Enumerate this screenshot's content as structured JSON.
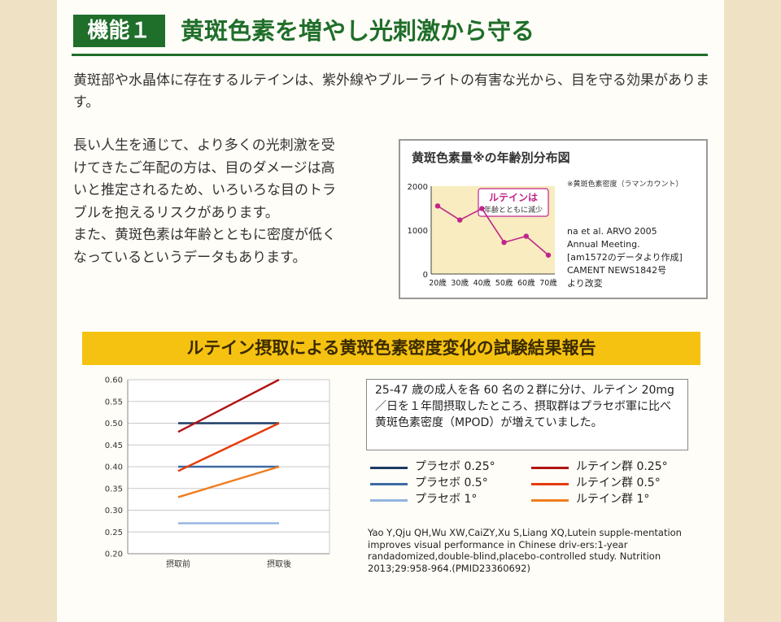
{
  "heading": {
    "tag": "機能１",
    "title": "黄斑色素を増やし光刺激から守る"
  },
  "intro": "黄斑部や水晶体に存在するルテインは、紫外線やブルーライトの有害な光から、目を守る効果があります。",
  "paragraph2": [
    "長い人生を通じて、より多くの光刺激を受",
    "けてきたご年配の方は、目のダメージは高",
    "いと推定されるため、いろいろな目のトラ",
    "ブルを抱えるリスクがあります。",
    "また、黄斑色素は年齢とともに密度が低く",
    "なっているというデータもあります。"
  ],
  "figure": {
    "title": "黄斑色素量※の年齢別分布図",
    "note": "※黄斑色素密度（ラマンカウント）",
    "callout": [
      "ルテインは",
      "年齢とともに減少"
    ],
    "source": [
      "na et al. ARVO 2005",
      "Annual Meeting.",
      "[am1572のデータより作成]",
      "CAMENT NEWS1842号",
      "より改変"
    ]
  },
  "banner": "ルテイン摂取による黄斑色素密度変化の試験結果報告",
  "infobox": "25-47 歳の成人を各 60 名の２群に分け、ルテイン 20mg ／日を１年間摂取したところ、摂取群はプラセボ軍に比べ黄斑色素密度（MPOD）が増えていました。",
  "reference": "Yao Y,Qju QH,Wu XW,CaiZY,Xu S,Liang XQ,Lutein supple-mentation improves visual performance in Chinese driv-ers:1-year randadomized,double-blind,placebo-controlled study. Nutrition 2013;29:958-964.(PMID23360692)",
  "colors": {
    "green": "#1f6e2a",
    "banner": "#f6c211",
    "magenta": "#c0268a"
  },
  "chart_data": [
    {
      "type": "line",
      "x": [
        "20歳",
        "30歳",
        "40歳",
        "50歳",
        "60歳",
        "70歳"
      ],
      "series": [
        {
          "values": [
            1550,
            1230,
            1490,
            720,
            860,
            430
          ],
          "color": "#c0268a"
        }
      ],
      "yticks": [
        0,
        1000,
        2000
      ],
      "ylim": [
        0,
        2000
      ],
      "grid": false
    },
    {
      "type": "line",
      "categories": [
        "摂取前",
        "摂取後"
      ],
      "ylim": [
        0.2,
        0.6
      ],
      "yticks": [
        "0.20",
        "0.25",
        "0.30",
        "0.35",
        "0.40",
        "0.45",
        "0.50",
        "0.55",
        "0.60"
      ],
      "grid": true,
      "legend_position": "right",
      "series": [
        {
          "name": "プラセボ 0.25°",
          "values": [
            0.5,
            0.5
          ],
          "color": "#1c3b64"
        },
        {
          "name": "プラセボ 0.5°",
          "values": [
            0.4,
            0.4
          ],
          "color": "#3d6aa3"
        },
        {
          "name": "プラセボ 1°",
          "values": [
            0.27,
            0.27
          ],
          "color": "#92b4e0"
        },
        {
          "name": "ルテイン群 0.25°",
          "values": [
            0.48,
            0.6
          ],
          "color": "#b11313"
        },
        {
          "name": "ルテイン群 0.5°",
          "values": [
            0.39,
            0.5
          ],
          "color": "#e63c0a"
        },
        {
          "name": "ルテイン群 1°",
          "values": [
            0.33,
            0.4
          ],
          "color": "#f07c1e"
        }
      ]
    }
  ]
}
